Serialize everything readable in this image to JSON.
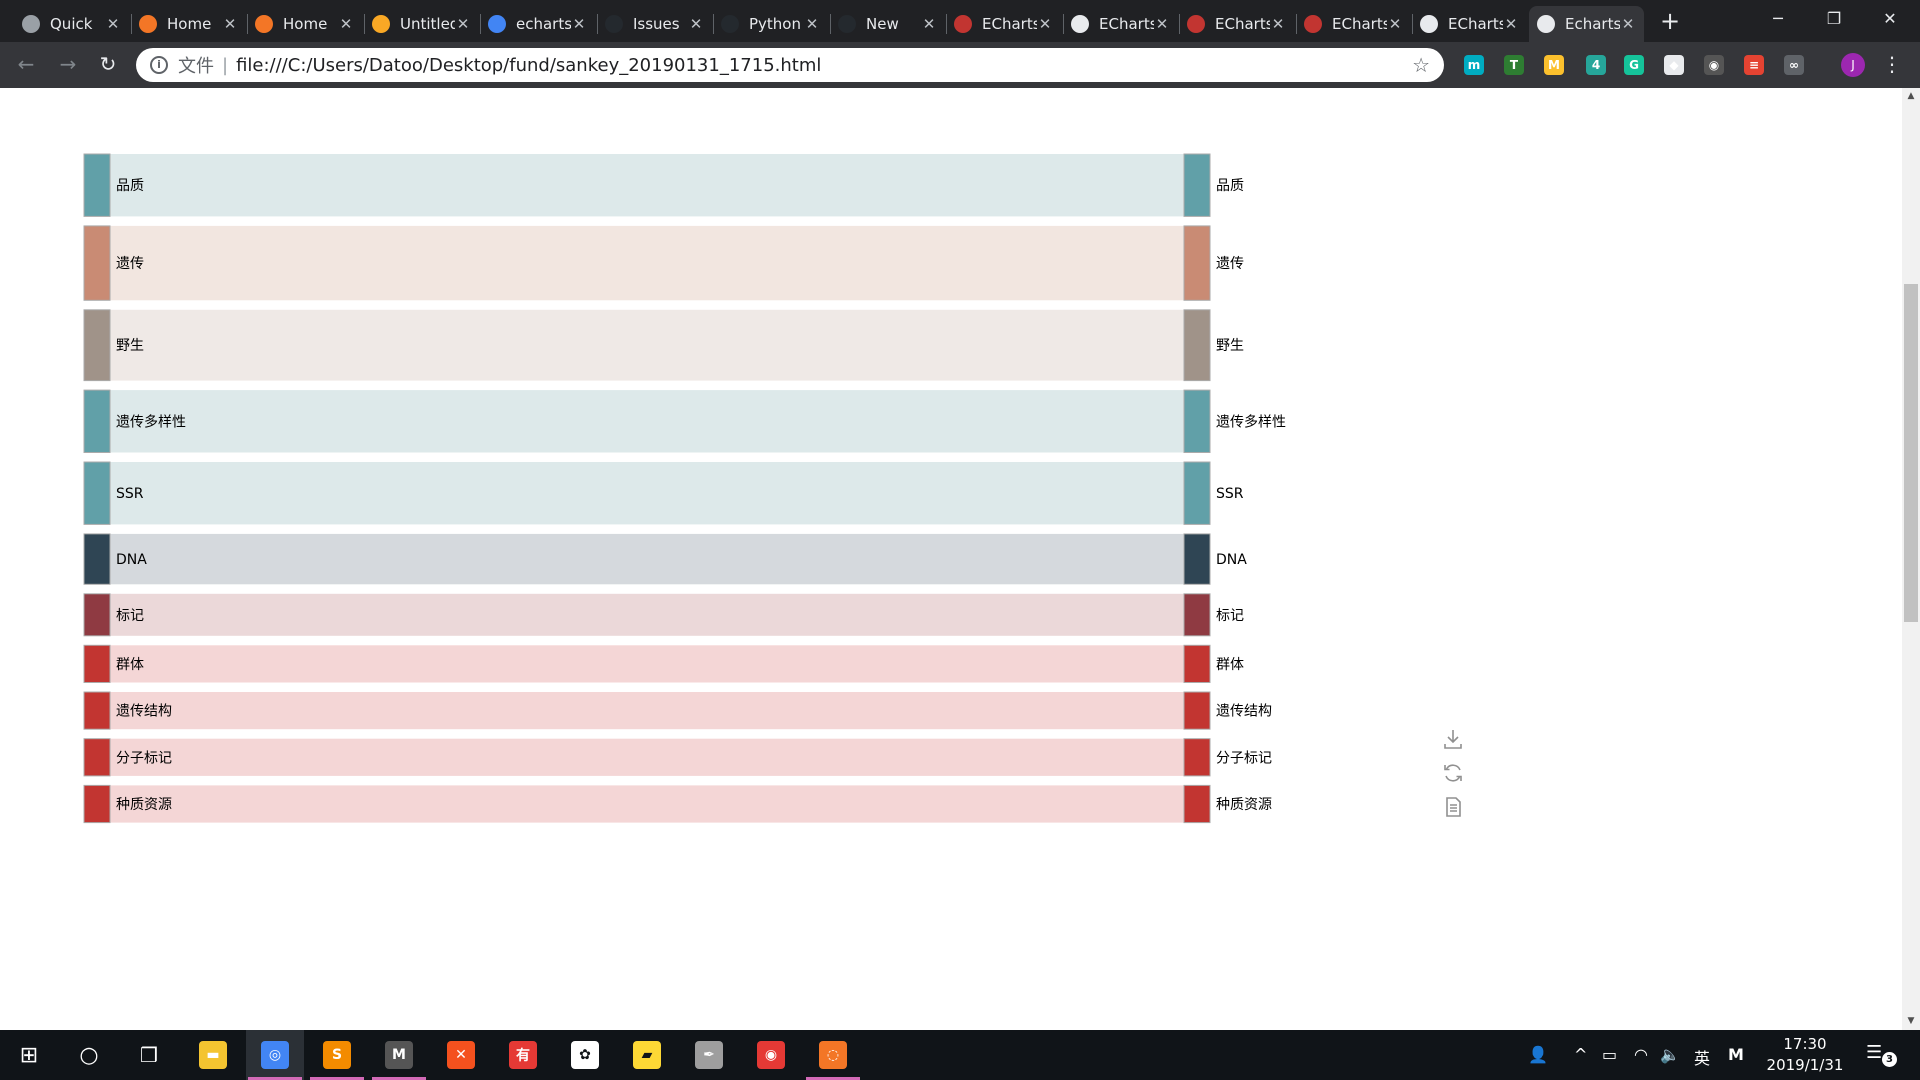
{
  "tabs": [
    {
      "title": "Quick",
      "favicon": "reading-list-icon",
      "color": "#9aa0a6"
    },
    {
      "title": "Home",
      "favicon": "jupyter-icon",
      "color": "#f37626"
    },
    {
      "title": "Home",
      "favicon": "jupyter-icon",
      "color": "#f37626"
    },
    {
      "title": "Untitled",
      "favicon": "notebook-icon",
      "color": "#f9a825"
    },
    {
      "title": "echarts",
      "favicon": "google-icon",
      "color": "#4285f4"
    },
    {
      "title": "Issues",
      "favicon": "github-icon",
      "color": "#24292e"
    },
    {
      "title": "Python",
      "favicon": "github-icon",
      "color": "#24292e"
    },
    {
      "title": "New",
      "favicon": "github-icon",
      "color": "#24292e"
    },
    {
      "title": "ECharts",
      "favicon": "echarts-icon",
      "color": "#c23531"
    },
    {
      "title": "ECharts",
      "favicon": "page-icon",
      "color": "#e8eaed"
    },
    {
      "title": "ECharts",
      "favicon": "echarts-icon",
      "color": "#c23531"
    },
    {
      "title": "ECharts",
      "favicon": "echarts-icon",
      "color": "#c23531"
    },
    {
      "title": "ECharts",
      "favicon": "page-icon",
      "color": "#e8eaed"
    },
    {
      "title": "Echarts",
      "favicon": "page-icon",
      "color": "#e8eaed",
      "active": true
    }
  ],
  "tab_close_glyph": "✕",
  "new_tab_glyph": "+",
  "window_controls": {
    "minimize": "─",
    "maximize": "❐",
    "close": "✕"
  },
  "toolbar": {
    "back_glyph": "←",
    "forward_glyph": "→",
    "reload_glyph": "↻",
    "info_glyph": "i",
    "scheme_label": "文件",
    "url": "file:///C:/Users/Datoo/Desktop/fund/sankey_20190131_1715.html",
    "bookmark_glyph": "☆",
    "menu_glyph": "⋮",
    "avatar_letter": "J"
  },
  "extensions": [
    {
      "name": "teal-circle-extension-icon",
      "color": "#00acc1",
      "glyph": "m"
    },
    {
      "name": "t-extension-icon",
      "color": "#2e7d32",
      "glyph": "T"
    },
    {
      "name": "m-extension-icon",
      "color": "#fbc02d",
      "glyph": "M"
    },
    {
      "name": "badge-extension-icon",
      "color": "#26a69a",
      "glyph": "4"
    },
    {
      "name": "grammarly-extension-icon",
      "color": "#15c39a",
      "glyph": "G"
    },
    {
      "name": "diamond-extension-icon",
      "color": "#e8eaed",
      "glyph": "◆"
    },
    {
      "name": "ring-extension-icon",
      "color": "#555555",
      "glyph": "◉"
    },
    {
      "name": "todoist-extension-icon",
      "color": "#e44332",
      "glyph": "≡"
    },
    {
      "name": "glasses-extension-icon",
      "color": "#5f6368",
      "glyph": "∞"
    }
  ],
  "chart_data": {
    "type": "sankey",
    "title": "",
    "left_nodes": [
      "品质",
      "遗传",
      "野生",
      "遗传多样性",
      "SSR",
      "DNA",
      "标记",
      "群体",
      "遗传结构",
      "分子标记",
      "种质资源"
    ],
    "right_nodes": [
      "品质",
      "遗传",
      "野生",
      "遗传多样性",
      "SSR",
      "DNA",
      "标记",
      "群体",
      "遗传结构",
      "分子标记",
      "种质资源"
    ],
    "links": [
      {
        "source": "品质",
        "target": "品质",
        "value": 52
      },
      {
        "source": "遗传",
        "target": "遗传",
        "value": 62
      },
      {
        "source": "野生",
        "target": "野生",
        "value": 59
      },
      {
        "source": "遗传多样性",
        "target": "遗传多样性",
        "value": 52
      },
      {
        "source": "SSR",
        "target": "SSR",
        "value": 52
      },
      {
        "source": "DNA",
        "target": "DNA",
        "value": 42
      },
      {
        "source": "标记",
        "target": "标记",
        "value": 35
      },
      {
        "source": "群体",
        "target": "群体",
        "value": 31
      },
      {
        "source": "遗传结构",
        "target": "遗传结构",
        "value": 31
      },
      {
        "source": "分子标记",
        "target": "分子标记",
        "value": 31
      },
      {
        "source": "种质资源",
        "target": "种质资源",
        "value": 31
      }
    ],
    "node_colors": [
      "#61a0a8",
      "#c98b74",
      "#a09389",
      "#61a0a8",
      "#61a0a8",
      "#2f4554",
      "#8f3a42",
      "#c23531",
      "#c23531",
      "#c23531",
      "#c23531"
    ],
    "link_colors": [
      "#dde9ea",
      "#f2e6e0",
      "#efe9e6",
      "#dde9ea",
      "#dde9ea",
      "#d5d9dd",
      "#ebd8d9",
      "#f4d6d6",
      "#f4d6d6",
      "#f4d6d6",
      "#f4d6d6"
    ]
  },
  "chart_toolbox": [
    {
      "name": "save-as-image-icon",
      "glyph": "download"
    },
    {
      "name": "restore-icon",
      "glyph": "refresh"
    },
    {
      "name": "data-view-icon",
      "glyph": "document"
    }
  ],
  "scrollbar": {
    "up_glyph": "▲",
    "down_glyph": "▼"
  },
  "taskbar": {
    "start_glyph": "⊞",
    "search_glyph": "○",
    "taskview_glyph": "❒",
    "apps": [
      {
        "name": "file-explorer-taskbar-icon",
        "color": "#f4c430",
        "glyph": "▬"
      },
      {
        "name": "chrome-taskbar-icon",
        "color": "#4285f4",
        "glyph": "◎",
        "active": true
      },
      {
        "name": "sublime-text-taskbar-icon",
        "color": "#f38b00",
        "glyph": "S"
      },
      {
        "name": "markdown-editor-taskbar-icon",
        "color": "#555555",
        "glyph": "M"
      },
      {
        "name": "xmind-taskbar-icon",
        "color": "#f4511e",
        "glyph": "✕"
      },
      {
        "name": "youdao-dict-taskbar-icon",
        "color": "#e53935",
        "glyph": "有"
      },
      {
        "name": "film-reel-taskbar-icon",
        "color": "#ffffff",
        "glyph": "✿"
      },
      {
        "name": "sticky-notes-taskbar-icon",
        "color": "#fdd835",
        "glyph": "▰"
      },
      {
        "name": "pen-app-taskbar-icon",
        "color": "#9e9e9e",
        "glyph": "✒"
      },
      {
        "name": "netease-music-taskbar-icon",
        "color": "#e53935",
        "glyph": "◉"
      },
      {
        "name": "jupyter-taskbar-icon",
        "color": "#f37626",
        "glyph": "◌"
      }
    ],
    "tray": {
      "people_glyph": "👤",
      "chevron_glyph": "^",
      "battery_glyph": "▭",
      "wifi_glyph": "◠",
      "volume_glyph": "🔈",
      "ime_label": "英",
      "ime_mode": "M",
      "time": "17:30",
      "date": "2019/1/31",
      "notification_count": "3",
      "notification_glyph": "☰"
    }
  }
}
